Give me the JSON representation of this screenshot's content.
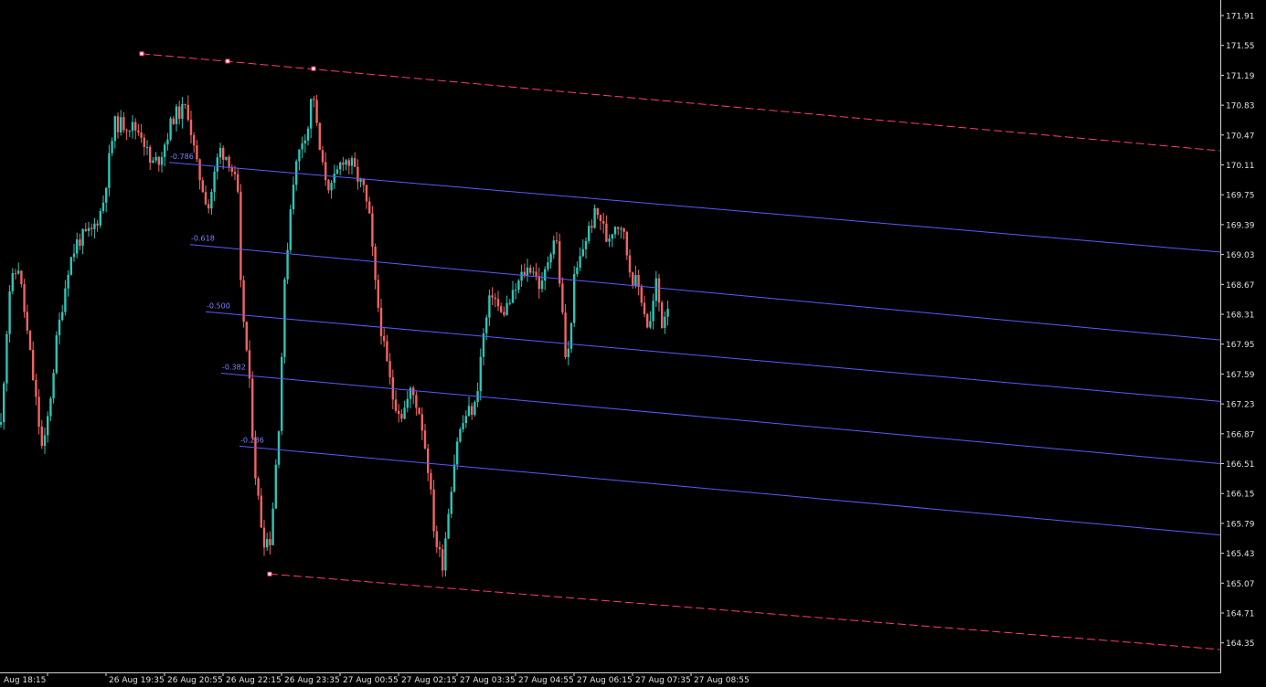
{
  "colors": {
    "background": "#000000",
    "axis": "#d0d0d0",
    "text": "#e0e0e0",
    "bull": "#2ec4b6",
    "bear": "#f06461",
    "channel": "#ff3d6e",
    "fib": "#5a5aff",
    "fib_label": "#8080ff"
  },
  "chart_data": {
    "type": "candlestick",
    "title": "",
    "grid": false,
    "ylim": [
      164.02,
      172.13
    ],
    "y_ticks": [
      "171.91",
      "171.55",
      "171.19",
      "170.83",
      "170.47",
      "170.11",
      "169.75",
      "169.39",
      "169.03",
      "168.67",
      "168.31",
      "167.95",
      "167.59",
      "167.23",
      "166.87",
      "166.51",
      "166.15",
      "165.79",
      "165.43",
      "165.07",
      "164.71",
      "164.35"
    ],
    "x_ticks": [
      "Aug 18:15",
      "26 Aug 19:35",
      "26 Aug 20:55",
      "26 Aug 22:15",
      "26 Aug 23:35",
      "27 Aug 00:55",
      "27 Aug 02:15",
      "27 Aug 03:35",
      "27 Aug 04:55",
      "27 Aug 06:15",
      "27 Aug 07:35",
      "27 Aug 08:55"
    ],
    "approx_close_path": [
      [
        0,
        166.8
      ],
      [
        10,
        168.6
      ],
      [
        20,
        168.9
      ],
      [
        32,
        167.9
      ],
      [
        47,
        166.6
      ],
      [
        55,
        167.3
      ],
      [
        62,
        168.0
      ],
      [
        75,
        168.9
      ],
      [
        85,
        169.2
      ],
      [
        100,
        169.3
      ],
      [
        112,
        169.6
      ],
      [
        125,
        170.6
      ],
      [
        140,
        170.6
      ],
      [
        155,
        170.5
      ],
      [
        165,
        170.1
      ],
      [
        175,
        170.2
      ],
      [
        190,
        170.7
      ],
      [
        205,
        170.8
      ],
      [
        215,
        170.1
      ],
      [
        228,
        169.6
      ],
      [
        240,
        170.3
      ],
      [
        250,
        170.2
      ],
      [
        260,
        169.8
      ],
      [
        262,
        168.8
      ],
      [
        272,
        167.6
      ],
      [
        280,
        166.3
      ],
      [
        288,
        165.6
      ],
      [
        296,
        165.6
      ],
      [
        305,
        167.0
      ],
      [
        312,
        168.8
      ],
      [
        320,
        169.9
      ],
      [
        330,
        170.4
      ],
      [
        338,
        170.6
      ],
      [
        342,
        171.1
      ],
      [
        346,
        170.6
      ],
      [
        352,
        170.1
      ],
      [
        362,
        169.8
      ],
      [
        375,
        170.2
      ],
      [
        385,
        170.1
      ],
      [
        398,
        169.8
      ],
      [
        405,
        169.4
      ],
      [
        410,
        168.7
      ],
      [
        420,
        167.9
      ],
      [
        430,
        167.3
      ],
      [
        440,
        167.1
      ],
      [
        450,
        167.4
      ],
      [
        460,
        167.1
      ],
      [
        468,
        166.5
      ],
      [
        476,
        165.6
      ],
      [
        484,
        165.3
      ],
      [
        492,
        166.1
      ],
      [
        500,
        166.8
      ],
      [
        510,
        167.1
      ],
      [
        520,
        167.2
      ],
      [
        528,
        168.0
      ],
      [
        538,
        168.6
      ],
      [
        548,
        168.3
      ],
      [
        560,
        168.5
      ],
      [
        572,
        168.8
      ],
      [
        582,
        168.9
      ],
      [
        592,
        168.6
      ],
      [
        602,
        169.1
      ],
      [
        608,
        169.3
      ],
      [
        616,
        168.2
      ],
      [
        620,
        167.6
      ],
      [
        628,
        168.7
      ],
      [
        640,
        169.2
      ],
      [
        650,
        169.5
      ],
      [
        656,
        169.5
      ],
      [
        664,
        169.2
      ],
      [
        672,
        169.4
      ],
      [
        680,
        169.4
      ],
      [
        690,
        168.8
      ],
      [
        700,
        168.6
      ],
      [
        710,
        168.1
      ],
      [
        718,
        168.7
      ],
      [
        724,
        168.2
      ],
      [
        732,
        168.5
      ]
    ],
    "channel": {
      "upper": [
        [
          155,
          171.45
        ],
        [
          1335,
          170.28
        ]
      ],
      "lower": [
        [
          295,
          165.18
        ],
        [
          1335,
          164.27
        ]
      ],
      "anchor_points": [
        [
          155,
          171.45
        ],
        [
          249,
          171.36
        ],
        [
          343,
          171.27
        ],
        [
          295,
          165.18
        ]
      ]
    },
    "fib_levels": [
      {
        "label": "-0.786",
        "start": [
          185,
          170.14
        ],
        "end": [
          1335,
          169.06
        ]
      },
      {
        "label": "-0.618",
        "start": [
          208,
          169.15
        ],
        "end": [
          1335,
          168.0
        ]
      },
      {
        "label": "-0.500",
        "start": [
          225,
          168.34
        ],
        "end": [
          1335,
          167.26
        ]
      },
      {
        "label": "-0.382",
        "start": [
          242,
          167.6
        ],
        "end": [
          1335,
          166.51
        ]
      },
      {
        "label": "-0.236",
        "start": [
          262,
          166.72
        ],
        "end": [
          1335,
          165.65
        ]
      }
    ]
  }
}
